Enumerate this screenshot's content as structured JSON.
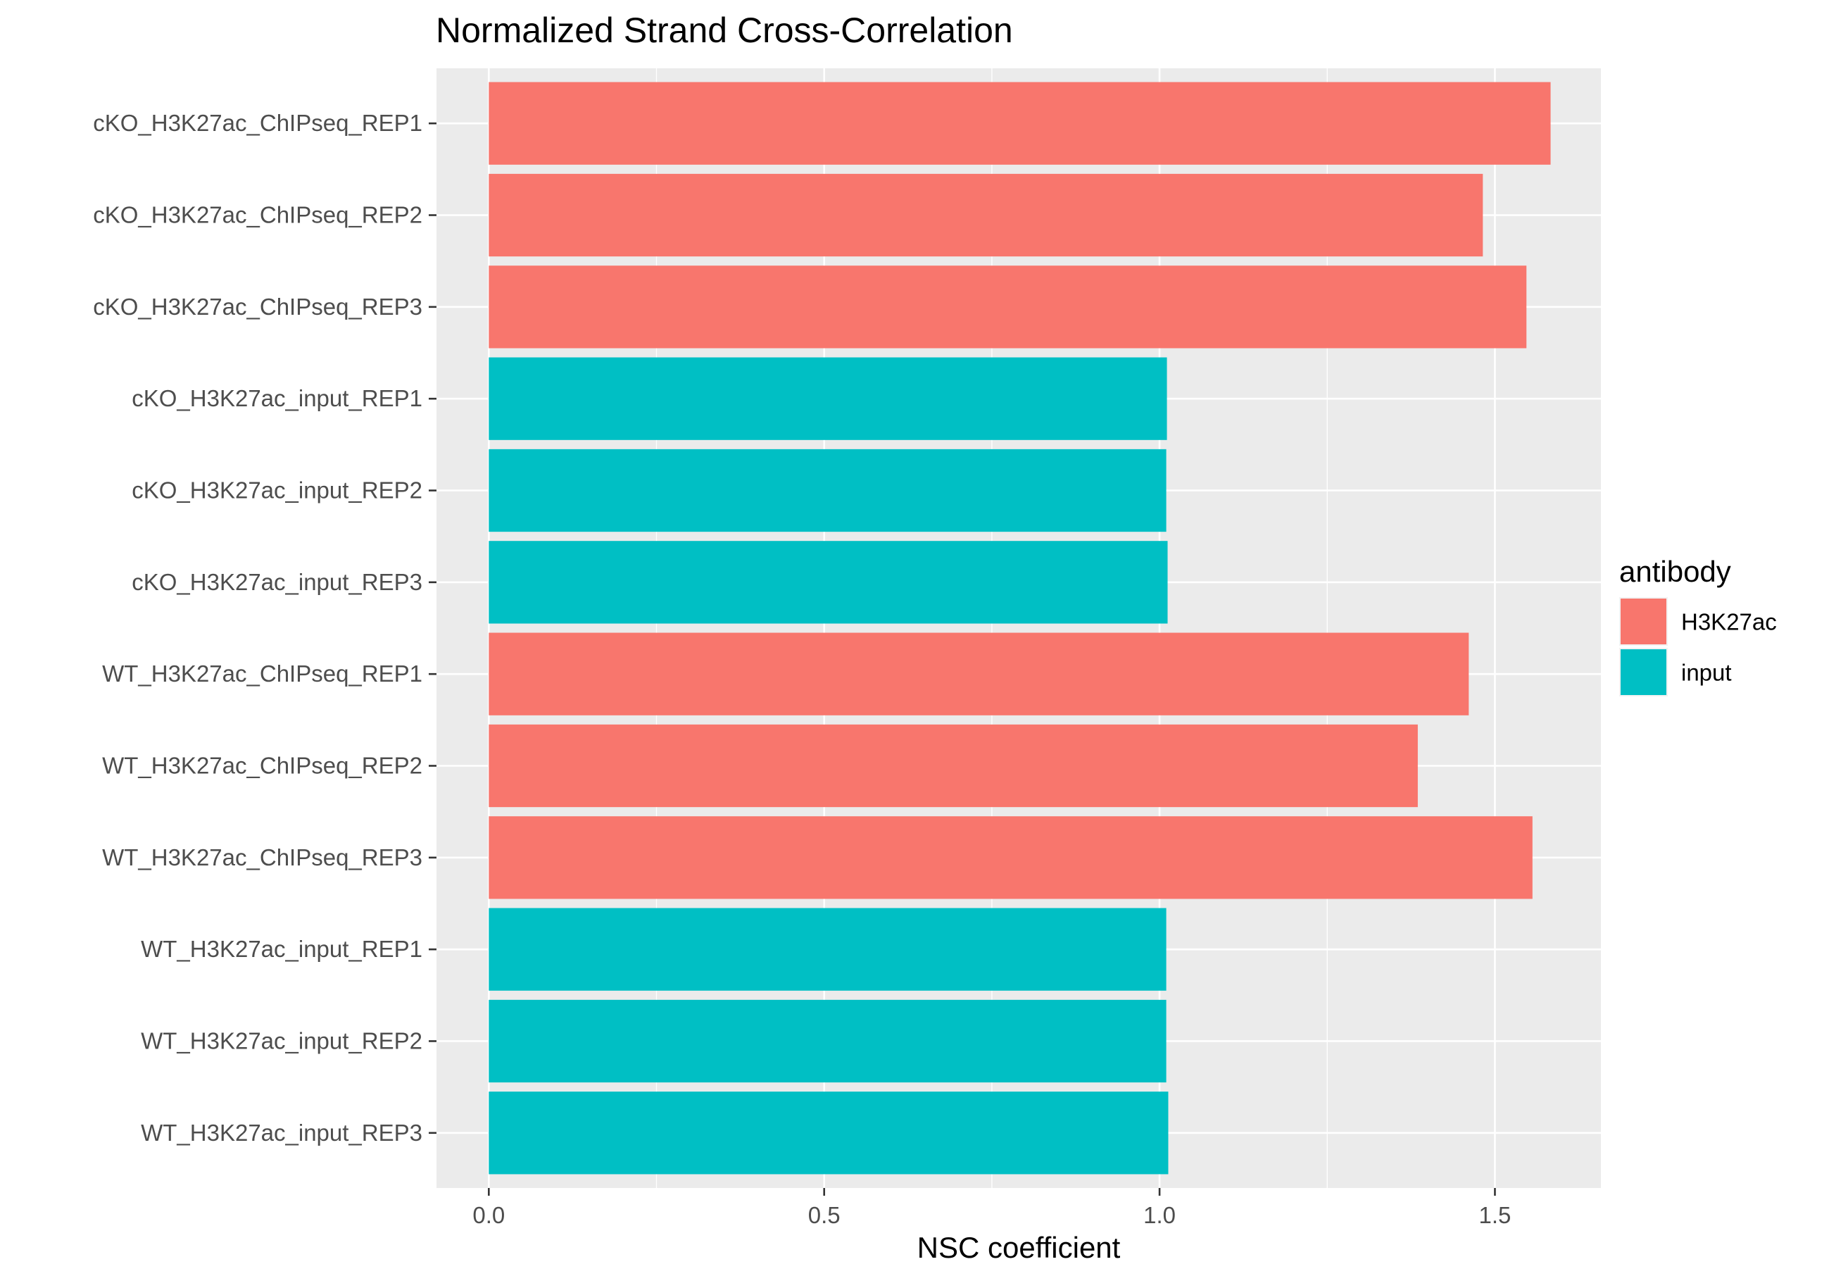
{
  "chart_data": {
    "type": "bar",
    "orientation": "horizontal",
    "title": "Normalized Strand Cross-Correlation",
    "xlabel": "NSC coefficient",
    "ylabel": "",
    "xlim": [
      -0.078,
      1.658
    ],
    "xticks": [
      0.0,
      0.5,
      1.0,
      1.5
    ],
    "xtick_labels": [
      "0.0",
      "0.5",
      "1.0",
      "1.5"
    ],
    "grid": true,
    "legend": {
      "title": "antibody",
      "position": "right",
      "entries": [
        {
          "label": "H3K27ac",
          "color": "#F8766D"
        },
        {
          "label": "input",
          "color": "#00BFC4"
        }
      ]
    },
    "categories": [
      "cKO_H3K27ac_ChIPseq_REP1",
      "cKO_H3K27ac_ChIPseq_REP2",
      "cKO_H3K27ac_ChIPseq_REP3",
      "cKO_H3K27ac_input_REP1",
      "cKO_H3K27ac_input_REP2",
      "cKO_H3K27ac_input_REP3",
      "WT_H3K27ac_ChIPseq_REP1",
      "WT_H3K27ac_ChIPseq_REP2",
      "WT_H3K27ac_ChIPseq_REP3",
      "WT_H3K27ac_input_REP1",
      "WT_H3K27ac_input_REP2",
      "WT_H3K27ac_input_REP3"
    ],
    "values": [
      1.583,
      1.482,
      1.547,
      1.011,
      1.01,
      1.012,
      1.461,
      1.385,
      1.556,
      1.01,
      1.01,
      1.013
    ],
    "groups": [
      "H3K27ac",
      "H3K27ac",
      "H3K27ac",
      "input",
      "input",
      "input",
      "H3K27ac",
      "H3K27ac",
      "H3K27ac",
      "input",
      "input",
      "input"
    ]
  },
  "colors": {
    "panel_background": "#EBEBEB",
    "grid_major": "#FFFFFF",
    "H3K27ac": "#F8766D",
    "input": "#00BFC4"
  }
}
